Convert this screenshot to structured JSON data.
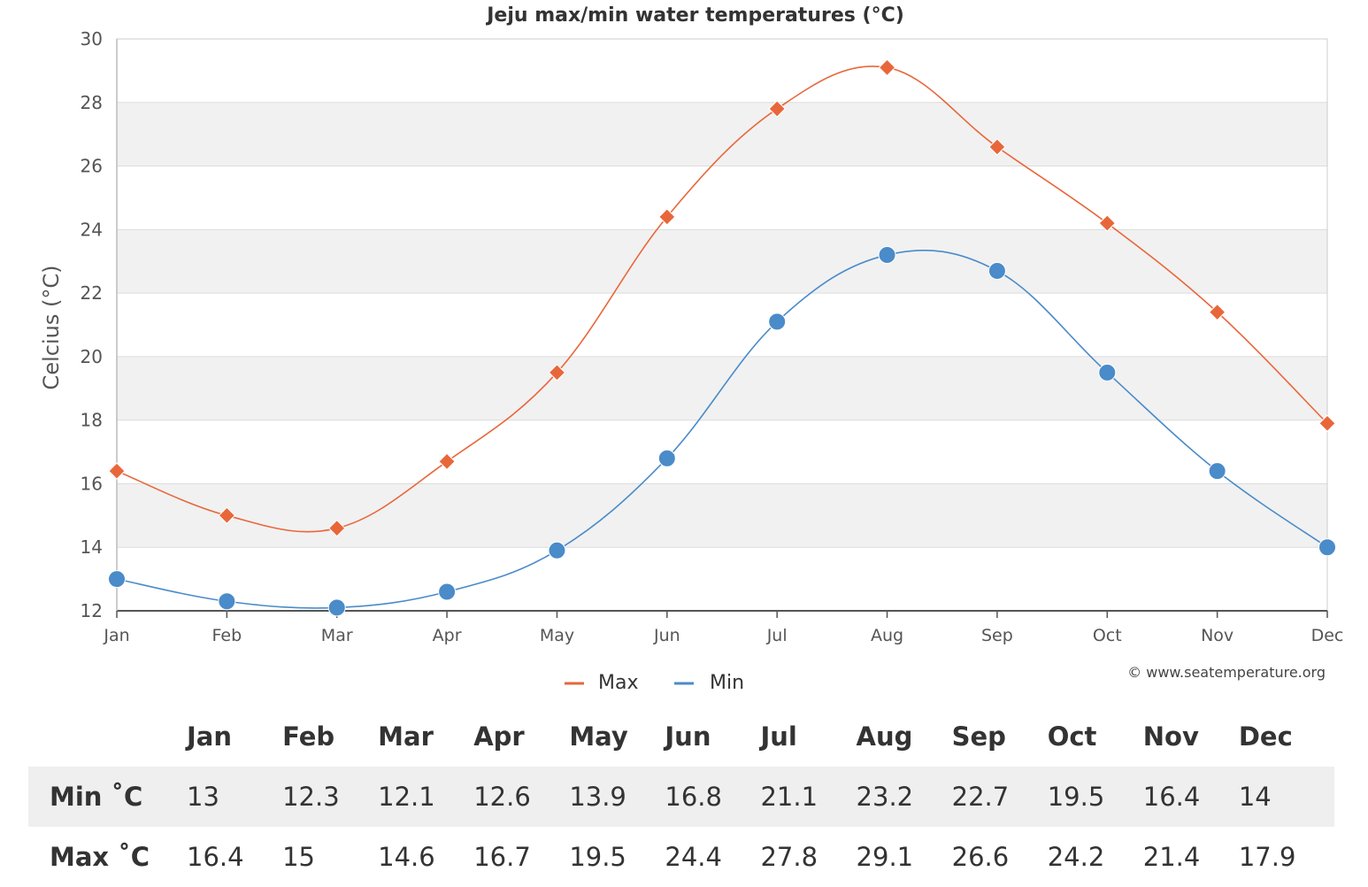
{
  "chart_data": {
    "type": "line",
    "title": "Jeju max/min water temperatures (°C)",
    "ylabel": "Celcius (°C)",
    "xlabel": "",
    "categories": [
      "Jan",
      "Feb",
      "Mar",
      "Apr",
      "May",
      "Jun",
      "Jul",
      "Aug",
      "Sep",
      "Oct",
      "Nov",
      "Dec"
    ],
    "ylim": [
      12,
      30
    ],
    "yticks": [
      "12",
      "14",
      "16",
      "18",
      "20",
      "22",
      "24",
      "26",
      "28",
      "30"
    ],
    "series": [
      {
        "name": "Max",
        "color": "#e8673a",
        "marker": "diamond",
        "values": [
          16.4,
          15,
          14.6,
          16.7,
          19.5,
          24.4,
          27.8,
          29.1,
          26.6,
          24.2,
          21.4,
          17.9
        ]
      },
      {
        "name": "Min",
        "color": "#4a8bc9",
        "marker": "circle",
        "values": [
          13,
          12.3,
          12.1,
          12.6,
          13.9,
          16.8,
          21.1,
          23.2,
          22.7,
          19.5,
          16.4,
          14
        ]
      }
    ],
    "legend": "bottom-center",
    "credit": "© www.seatemperature.org",
    "grid": true
  },
  "table": {
    "months": [
      "Jan",
      "Feb",
      "Mar",
      "Apr",
      "May",
      "Jun",
      "Jul",
      "Aug",
      "Sep",
      "Oct",
      "Nov",
      "Dec"
    ],
    "rows": [
      {
        "label": "Min ˚C",
        "values": [
          "13",
          "12.3",
          "12.1",
          "12.6",
          "13.9",
          "16.8",
          "21.1",
          "23.2",
          "22.7",
          "19.5",
          "16.4",
          "14"
        ]
      },
      {
        "label": "Max ˚C",
        "values": [
          "16.4",
          "15",
          "14.6",
          "16.7",
          "19.5",
          "24.4",
          "27.8",
          "29.1",
          "26.6",
          "24.2",
          "21.4",
          "17.9"
        ]
      }
    ]
  }
}
